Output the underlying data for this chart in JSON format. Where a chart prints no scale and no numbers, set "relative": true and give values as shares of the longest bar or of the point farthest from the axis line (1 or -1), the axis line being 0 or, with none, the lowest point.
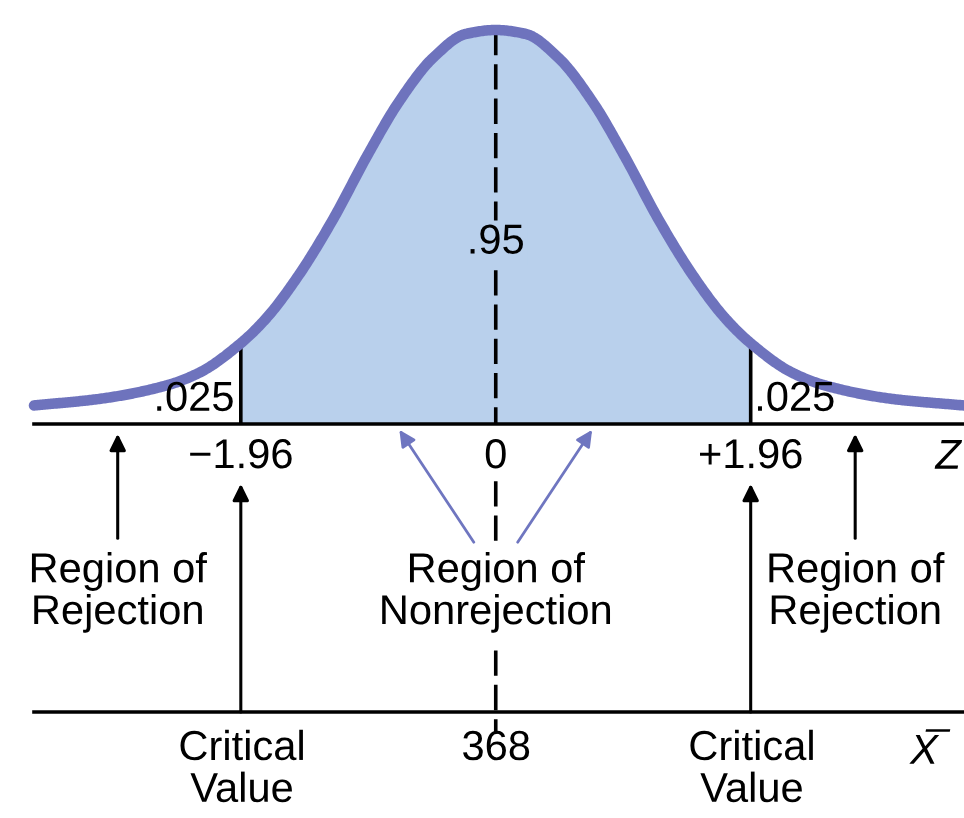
{
  "chart_data": {
    "type": "line",
    "relative": true,
    "x": [
      -3.55,
      -3.04,
      -2.53,
      -2.28,
      -1.96,
      -1.76,
      -1.51,
      -1.25,
      -0.99,
      -0.74,
      -0.48,
      -0.23,
      0,
      0.23,
      0.48,
      0.74,
      0.99,
      1.25,
      1.51,
      1.76,
      1.96,
      2.28,
      2.53,
      3.04,
      3.6
    ],
    "series": [
      {
        "color": "#6e73bd",
        "values": [
          0.047,
          0.064,
          0.098,
          0.13,
          0.205,
          0.27,
          0.38,
          0.52,
          0.68,
          0.82,
          0.93,
          0.99,
          1.0,
          0.99,
          0.93,
          0.82,
          0.68,
          0.52,
          0.38,
          0.27,
          0.205,
          0.13,
          0.098,
          0.064,
          0.047
        ]
      }
    ],
    "xlim": [
      -3.55,
      3.6
    ],
    "xticks": [
      {
        "value": -1.96,
        "label": "−1.96"
      },
      0,
      {
        "value": 1.96,
        "label": "+1.96"
      }
    ],
    "xlabel": "Z",
    "ref_lines": [
      {
        "axis": "x",
        "value": -1.96
      },
      {
        "axis": "x",
        "value": 0,
        "line_style": "dashed"
      },
      {
        "axis": "x",
        "value": 1.96
      }
    ],
    "bands": [
      {
        "axis": "x",
        "from": -1.96,
        "to": 1.96,
        "label": "Region of\nNonrejection",
        "color": "#b9d0ec"
      }
    ],
    "annotations": [
      ".025",
      {
        "text": ".95",
        "x": 0,
        "y": 0.46
      },
      ".025",
      "Region of\nRejection",
      "Region of\nRejection",
      "Critical\nValue",
      "368",
      "Critical\nValue",
      "X̅"
    ]
  }
}
